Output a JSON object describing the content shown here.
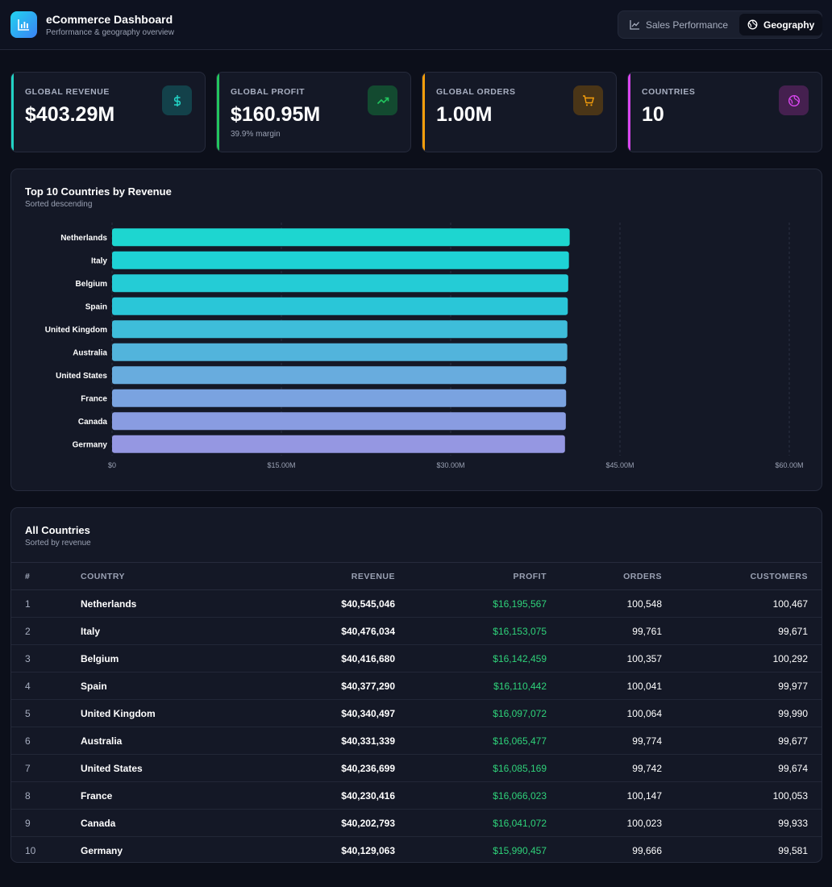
{
  "header": {
    "title": "eCommerce Dashboard",
    "subtitle": "Performance & geography overview",
    "logo_icon": "bar-chart-icon",
    "tabs": [
      {
        "label": "Sales Performance",
        "icon": "line-chart-icon",
        "active": false
      },
      {
        "label": "Geography",
        "icon": "globe-icon",
        "active": true
      }
    ]
  },
  "kpis": [
    {
      "label": "GLOBAL REVENUE",
      "value": "$403.29M",
      "sub": "",
      "icon": "dollar-icon",
      "color": "#22d3c5"
    },
    {
      "label": "GLOBAL PROFIT",
      "value": "$160.95M",
      "sub": "39.9% margin",
      "icon": "trending-up-icon",
      "color": "#22c55e"
    },
    {
      "label": "GLOBAL ORDERS",
      "value": "1.00M",
      "sub": "",
      "icon": "cart-icon",
      "color": "#f59e0b"
    },
    {
      "label": "COUNTRIES",
      "value": "10",
      "sub": "",
      "icon": "globe-icon",
      "color": "#d946ef"
    }
  ],
  "chart_panel": {
    "title": "Top 10 Countries by Revenue",
    "subtitle": "Sorted descending"
  },
  "chart_data": {
    "type": "bar",
    "orientation": "horizontal",
    "categories": [
      "Netherlands",
      "Italy",
      "Belgium",
      "Spain",
      "United Kingdom",
      "Australia",
      "United States",
      "France",
      "Canada",
      "Germany"
    ],
    "values": [
      40545046,
      40476034,
      40416680,
      40377290,
      40340497,
      40331339,
      40236699,
      40230416,
      40202793,
      40129063
    ],
    "title": "Top 10 Countries by Revenue",
    "xlabel": "",
    "ylabel": "",
    "xlim": [
      0,
      60000000
    ],
    "xticks": [
      "$0",
      "$15.00M",
      "$30.00M",
      "$45.00M",
      "$60.00M"
    ],
    "grid": "vertical-dashed",
    "colors": [
      "#1dd6d0",
      "#1ed2d5",
      "#24ccd6",
      "#2ac6d8",
      "#3ebdda",
      "#52b4dc",
      "#68acde",
      "#7aa3e0",
      "#899ce1",
      "#9597e2"
    ]
  },
  "table": {
    "title": "All Countries",
    "subtitle": "Sorted by revenue",
    "columns": [
      "#",
      "COUNTRY",
      "REVENUE",
      "PROFIT",
      "ORDERS",
      "CUSTOMERS"
    ],
    "rows": [
      [
        "1",
        "Netherlands",
        "$40,545,046",
        "$16,195,567",
        "100,548",
        "100,467"
      ],
      [
        "2",
        "Italy",
        "$40,476,034",
        "$16,153,075",
        "99,761",
        "99,671"
      ],
      [
        "3",
        "Belgium",
        "$40,416,680",
        "$16,142,459",
        "100,357",
        "100,292"
      ],
      [
        "4",
        "Spain",
        "$40,377,290",
        "$16,110,442",
        "100,041",
        "99,977"
      ],
      [
        "5",
        "United Kingdom",
        "$40,340,497",
        "$16,097,072",
        "100,064",
        "99,990"
      ],
      [
        "6",
        "Australia",
        "$40,331,339",
        "$16,065,477",
        "99,774",
        "99,677"
      ],
      [
        "7",
        "United States",
        "$40,236,699",
        "$16,085,169",
        "99,742",
        "99,674"
      ],
      [
        "8",
        "France",
        "$40,230,416",
        "$16,066,023",
        "100,147",
        "100,053"
      ],
      [
        "9",
        "Canada",
        "$40,202,793",
        "$16,041,072",
        "100,023",
        "99,933"
      ],
      [
        "10",
        "Germany",
        "$40,129,063",
        "$15,990,457",
        "99,666",
        "99,581"
      ]
    ]
  }
}
